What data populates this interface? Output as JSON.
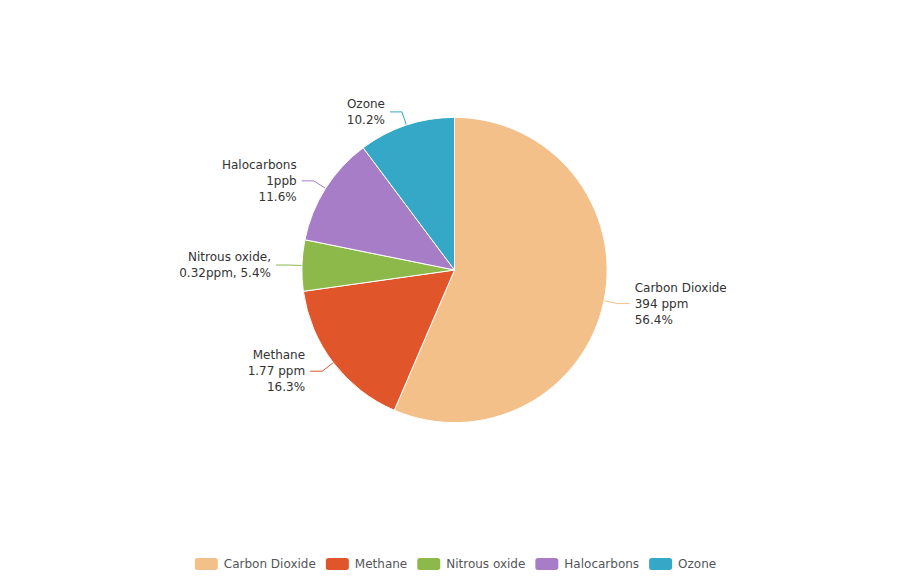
{
  "chart_data": {
    "type": "pie",
    "categories": [
      "Carbon Dioxide",
      "Methane",
      "Nitrous oxide",
      "Halocarbons",
      "Ozone"
    ],
    "values": [
      56.4,
      16.3,
      5.4,
      11.6,
      10.2
    ],
    "value_labels": [
      "Carbon Dioxide\n394 ppm\n56.4%",
      "Methane\n1.77 ppm\n16.3%",
      "Nitrous oxide,\n0.32ppm, 5.4%",
      "Halocarbons\n1ppb\n11.6%",
      "Ozone\n10.2%"
    ],
    "colors": [
      "#F4C08A",
      "#E0552A",
      "#8DB84A",
      "#A87DC8",
      "#35A8C8"
    ],
    "data_labels": true,
    "legend": "bottom"
  }
}
